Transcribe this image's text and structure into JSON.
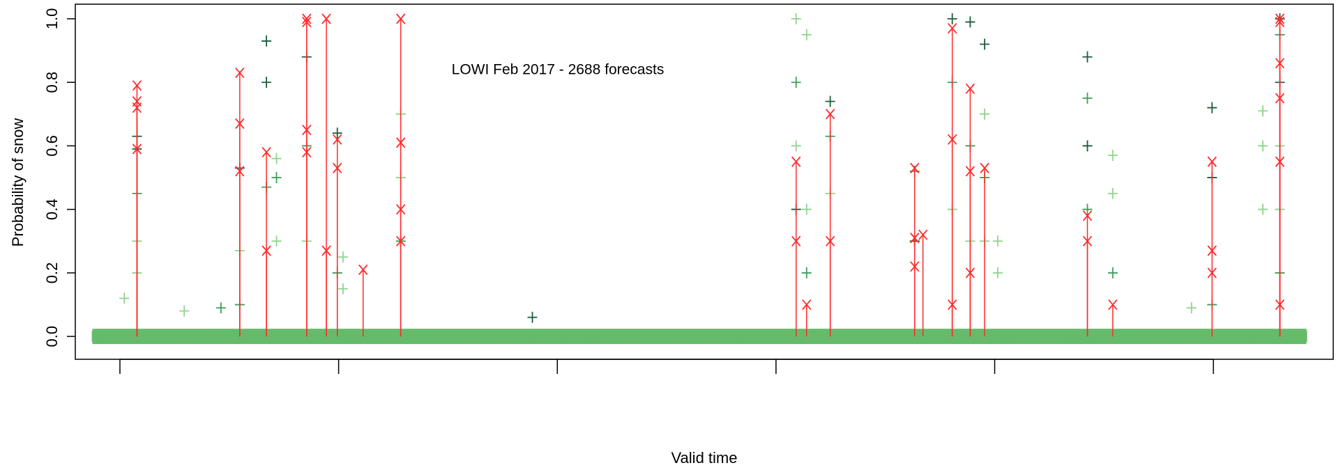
{
  "chart_data": {
    "type": "scatter",
    "title": "LOWI Feb 2017 - 2688 forecasts",
    "x_label": "Valid time",
    "y_label": "Probability of snow",
    "xlim": [
      -1.02,
      27.74
    ],
    "xticks": [
      0,
      5,
      10,
      15,
      20,
      25
    ],
    "ylim": [
      -0.072,
      1.046
    ],
    "yticks": [
      {
        "value": 0,
        "label": "0.0"
      },
      0.2,
      0.4,
      0.6,
      0.8,
      {
        "value": 1,
        "label": "1.0"
      }
    ],
    "series": [
      {
        "color": "#66bb6a",
        "marker": "plus",
        "x": [
          -0.5,
          -0.25,
          0,
          0.25,
          0.5,
          0.75,
          1,
          1.25,
          1.5,
          1.75,
          2,
          2.25,
          2.5,
          2.75,
          3,
          3.25,
          3.5,
          3.75,
          4,
          4.25,
          4.5,
          4.75,
          5,
          5.25,
          5.5,
          5.75,
          6,
          6.25,
          6.5,
          6.75,
          7,
          7.25,
          7.5,
          7.75,
          8,
          8.25,
          8.5,
          8.75,
          9,
          9.25,
          9.5,
          9.75,
          10,
          10.25,
          10.5,
          10.75,
          11,
          11.25,
          11.5,
          11.75,
          12,
          12.25,
          12.5,
          12.75,
          13,
          13.25,
          13.5,
          13.75,
          14,
          14.25,
          14.5,
          14.75,
          15,
          15.25,
          15.5,
          15.75,
          16,
          16.25,
          16.5,
          16.75,
          17,
          17.25,
          17.5,
          17.75,
          18,
          18.25,
          18.5,
          18.75,
          19,
          19.25,
          19.5,
          19.75,
          20,
          20.25,
          20.5,
          20.75,
          21,
          21.25,
          21.5,
          21.75,
          22,
          22.25,
          22.5,
          22.75,
          23,
          23.25,
          23.5,
          23.75,
          24,
          24.25,
          24.5,
          24.75,
          25,
          25.25,
          25.5,
          25.75,
          26,
          26.25,
          26.5,
          26.75,
          27
        ],
        "values": [
          0,
          0,
          0,
          0,
          0,
          0,
          0,
          0,
          0,
          0,
          0,
          0,
          0,
          0,
          0,
          0,
          0,
          0,
          0,
          0,
          0,
          0,
          0,
          0,
          0,
          0,
          0,
          0,
          0,
          0,
          0,
          0,
          0,
          0,
          0,
          0,
          0,
          0,
          0,
          0,
          0,
          0,
          0,
          0,
          0,
          0,
          0,
          0,
          0,
          0,
          0,
          0,
          0,
          0,
          0,
          0,
          0,
          0,
          0,
          0,
          0,
          0,
          0,
          0,
          0,
          0,
          0,
          0,
          0,
          0,
          0,
          0,
          0,
          0,
          0,
          0,
          0,
          0,
          0,
          0,
          0,
          0,
          0,
          0,
          0,
          0,
          0,
          0,
          0,
          0,
          0,
          0,
          0,
          0,
          0,
          0,
          0,
          0,
          0,
          0,
          0,
          0,
          0,
          0,
          0,
          0,
          0,
          0,
          0,
          0,
          0
        ]
      },
      {
        "color": "#8fd48f",
        "marker": "plus",
        "x": [
          0.1,
          0.39,
          0.39,
          1.47,
          2.74,
          3.58,
          3.58,
          4.27,
          5.1,
          5.1,
          6.42,
          6.42,
          15.46,
          15.46,
          15.7,
          15.7,
          16.24,
          18.17,
          19.03,
          19.44,
          19.77,
          19.77,
          20.07,
          20.07,
          22.12,
          22.7,
          22.7,
          24.5,
          26.13,
          26.13,
          26.13,
          26.52,
          26.52
        ],
        "values": [
          0.12,
          0.3,
          0.2,
          0.08,
          0.27,
          0.56,
          0.3,
          0.3,
          0.25,
          0.15,
          0.7,
          0.5,
          1.0,
          0.6,
          0.95,
          0.4,
          0.45,
          0.3,
          0.4,
          0.3,
          0.7,
          0.3,
          0.3,
          0.2,
          0.6,
          0.57,
          0.45,
          0.09,
          0.71,
          0.6,
          0.4,
          0.6,
          0.4
        ]
      },
      {
        "color": "#3f9e5a",
        "marker": "plus",
        "x": [
          0.39,
          2.31,
          2.74,
          3.35,
          3.58,
          4.27,
          4.97,
          6.42,
          15.46,
          15.7,
          16.24,
          18.17,
          19.03,
          19.44,
          19.77,
          22.12,
          22.12,
          22.7,
          24.97,
          26.52,
          26.52
        ],
        "values": [
          0.45,
          0.09,
          0.1,
          0.47,
          0.5,
          0.6,
          0.2,
          0.3,
          0.8,
          0.2,
          0.63,
          0.52,
          0.8,
          0.6,
          0.5,
          0.75,
          0.4,
          0.2,
          0.1,
          0.95,
          0.2
        ]
      },
      {
        "color": "#1b5e3b",
        "marker": "plus",
        "x": [
          0.39,
          0.39,
          2.74,
          3.35,
          3.35,
          4.27,
          4.97,
          9.43,
          15.46,
          16.24,
          18.17,
          19.03,
          19.44,
          19.77,
          22.12,
          22.12,
          24.97,
          24.97,
          26.52,
          26.52
        ],
        "values": [
          0.63,
          0.59,
          0.53,
          0.93,
          0.8,
          0.88,
          0.64,
          0.06,
          0.4,
          0.74,
          0.3,
          1.0,
          0.99,
          0.92,
          0.88,
          0.6,
          0.72,
          0.5,
          1.0,
          0.8
        ]
      },
      {
        "color": "#ff2a2a",
        "marker": "x",
        "stems": true,
        "x": [
          0.39,
          0.39,
          0.39,
          0.39,
          2.74,
          2.74,
          2.74,
          3.35,
          3.35,
          4.27,
          4.27,
          4.27,
          4.27,
          4.72,
          4.72,
          4.97,
          4.97,
          5.56,
          6.42,
          6.42,
          6.42,
          6.42,
          15.46,
          15.46,
          15.7,
          16.24,
          16.24,
          18.17,
          18.17,
          18.17,
          18.36,
          19.03,
          19.03,
          19.03,
          19.44,
          19.44,
          19.44,
          19.77,
          22.12,
          22.12,
          22.7,
          24.97,
          24.97,
          24.97,
          26.52,
          26.52,
          26.52,
          26.52,
          26.52,
          26.52
        ],
        "values": [
          0.79,
          0.74,
          0.72,
          0.59,
          0.83,
          0.67,
          0.52,
          0.58,
          0.27,
          1.0,
          0.99,
          0.58,
          0.65,
          1.0,
          0.27,
          0.62,
          0.53,
          0.21,
          1.0,
          0.61,
          0.4,
          0.3,
          0.55,
          0.3,
          0.1,
          0.7,
          0.3,
          0.53,
          0.31,
          0.22,
          0.32,
          0.97,
          0.62,
          0.1,
          0.78,
          0.52,
          0.2,
          0.53,
          0.38,
          0.3,
          0.1,
          0.55,
          0.27,
          0.2,
          1.0,
          0.99,
          0.86,
          0.75,
          0.55,
          0.1
        ]
      }
    ]
  }
}
